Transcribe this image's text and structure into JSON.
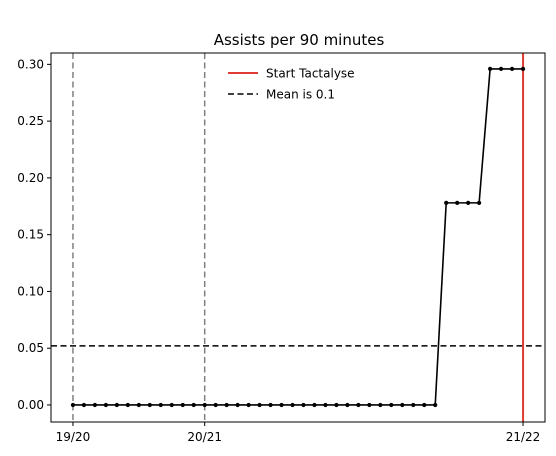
{
  "chart_data": {
    "type": "line",
    "title": "Assists per 90 minutes",
    "xlabel": "",
    "ylabel": "",
    "x_tick_labels": [
      {
        "label": "19/20",
        "index": 0
      },
      {
        "label": "20/21",
        "index": 12
      },
      {
        "label": "21/22",
        "index": 41
      }
    ],
    "ylim": [
      -0.015,
      0.31
    ],
    "xlim": [
      -2,
      43
    ],
    "y_ticks": [
      0.0,
      0.05,
      0.1,
      0.15,
      0.2,
      0.25,
      0.3
    ],
    "y_tick_labels": [
      "0.00",
      "0.05",
      "0.10",
      "0.15",
      "0.20",
      "0.25",
      "0.30"
    ],
    "series": [
      {
        "values": [
          0,
          0,
          0,
          0,
          0,
          0,
          0,
          0,
          0,
          0,
          0,
          0,
          0,
          0,
          0,
          0,
          0,
          0,
          0,
          0,
          0,
          0,
          0,
          0,
          0,
          0,
          0,
          0,
          0,
          0,
          0,
          0,
          0,
          0,
          0.178,
          0.178,
          0.178,
          0.178,
          0.296,
          0.296,
          0.296,
          0.296
        ],
        "color": "#000000",
        "marker": "dot"
      }
    ],
    "reference_lines": {
      "season_lines": [
        0,
        12
      ],
      "season_line_color": "#808080",
      "tactalyse_start": 41,
      "tactalyse_color": "#e03c31",
      "mean_value": 0.052,
      "mean_color": "#000000"
    },
    "legend": {
      "placement": "top-center",
      "entries": [
        {
          "label": "Start Tactalyse",
          "color": "#e03c31",
          "style": "solid"
        },
        {
          "label": "Mean is 0.1",
          "color": "#000000",
          "style": "dashed"
        }
      ]
    },
    "grid": false
  }
}
